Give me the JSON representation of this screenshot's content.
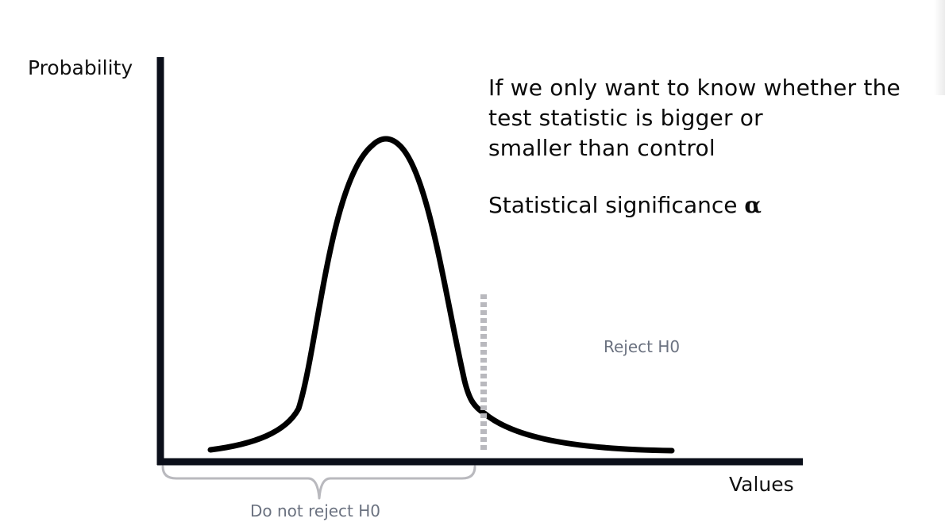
{
  "axes": {
    "y_label": "Probability",
    "x_label": "Values"
  },
  "headline": {
    "lines": [
      "If we only want to know whether the",
      "test statistic is bigger or",
      "smaller than control"
    ]
  },
  "significance": {
    "text": "Statistical significance",
    "symbol": "α"
  },
  "regions": {
    "reject_label": "Reject H0",
    "not_reject_label": "Do not reject H0"
  },
  "colors": {
    "axis": "#0b0f1a",
    "curve": "#000000",
    "threshold": "#b9b9be",
    "bracket": "#b9b9be",
    "region_text": "#6b7280"
  }
}
